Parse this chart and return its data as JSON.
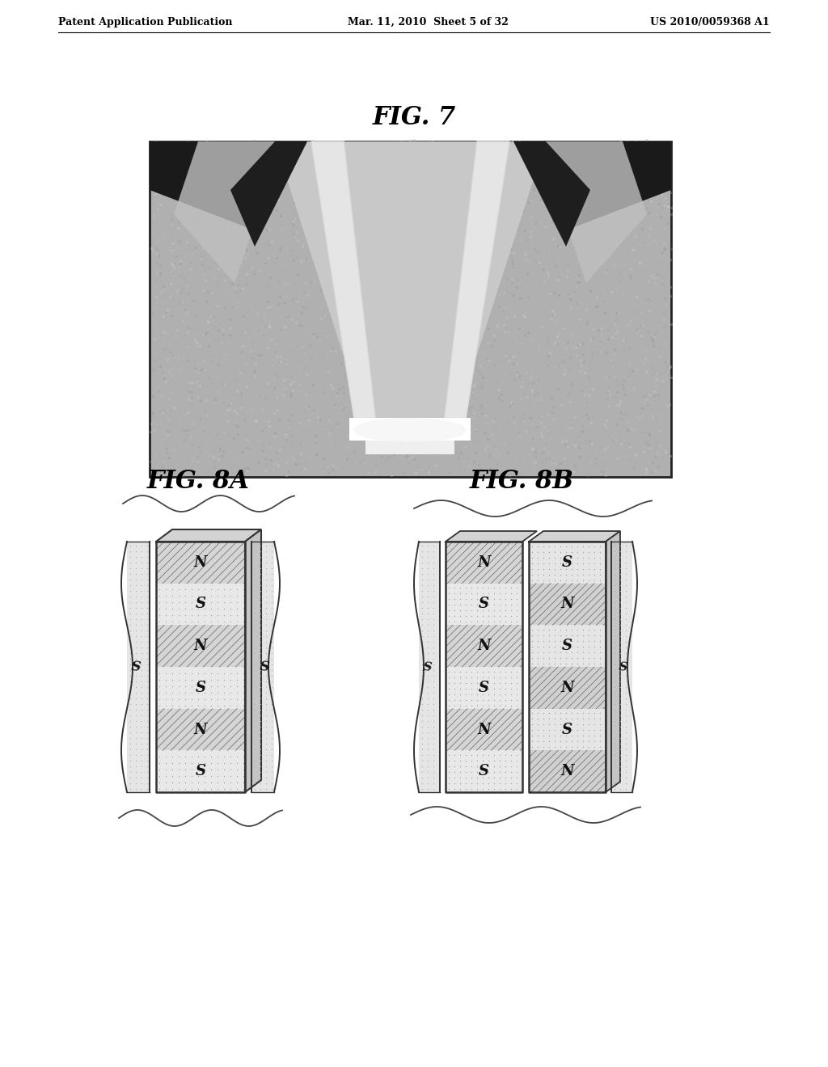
{
  "header_left": "Patent Application Publication",
  "header_mid": "Mar. 11, 2010  Sheet 5 of 32",
  "header_right": "US 2010/0059368 A1",
  "fig7_label": "FIG. 7",
  "fig8a_label": "FIG. 8A",
  "fig8b_label": "FIG. 8B",
  "fig8a_center_labels": [
    "N",
    "S",
    "N",
    "S",
    "N",
    "S"
  ],
  "fig8a_outer_label": "S",
  "fig8b_left_labels": [
    "N",
    "S",
    "N",
    "S",
    "N",
    "S"
  ],
  "fig8b_right_labels": [
    "S",
    "N",
    "S",
    "N",
    "S",
    "N"
  ],
  "fig8b_outer_label": "S",
  "background_color": "#ffffff",
  "text_color": "#000000",
  "header_fontsize": 9,
  "fig_label_fontsize": 18,
  "magnet_letter_fontsize": 13
}
